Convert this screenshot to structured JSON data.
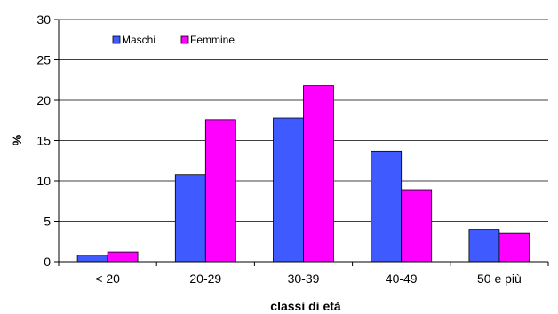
{
  "chart_data": {
    "type": "bar",
    "categories": [
      "< 20",
      "20-29",
      "30-39",
      "40-49",
      "50 e più"
    ],
    "series": [
      {
        "name": "Maschi",
        "values": [
          0.8,
          10.8,
          17.8,
          13.7,
          4.0
        ],
        "color": "#3f5bff"
      },
      {
        "name": "Femmine",
        "values": [
          1.2,
          17.6,
          21.8,
          8.9,
          3.5
        ],
        "color": "#ff00ff"
      }
    ],
    "xlabel": "classi di età",
    "ylabel": "%",
    "ylim": [
      0,
      30
    ],
    "yticks": [
      0,
      5,
      10,
      15,
      20,
      25,
      30
    ],
    "grid": true,
    "legend": "top-left"
  }
}
